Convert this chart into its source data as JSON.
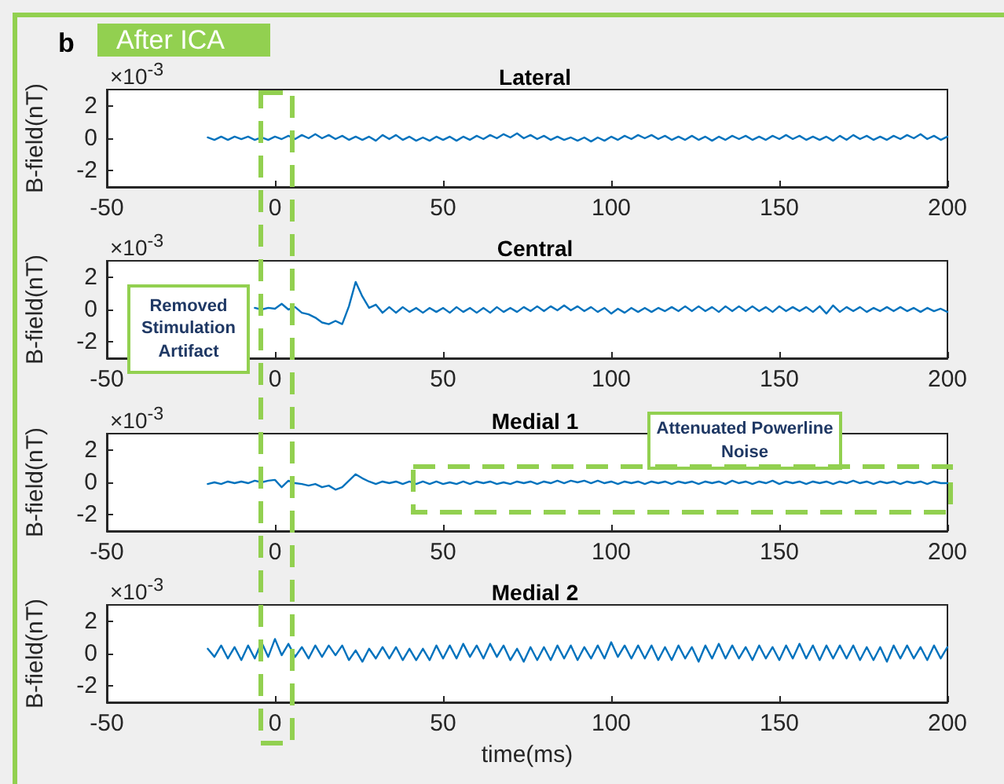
{
  "chart_data": [
    {
      "type": "line",
      "title": "Lateral",
      "ylabel": "B-field(nT)",
      "annotations": [
        "×10$^{-3}$",
        "b",
        "After ICA"
      ],
      "xlim": [
        -50,
        200
      ],
      "xticks": [
        -50,
        0,
        50,
        100,
        150,
        200
      ],
      "ylim": [
        -3,
        3
      ],
      "yticks": [
        -2,
        0,
        2
      ],
      "marker": "none",
      "line_style": "solid",
      "x": [
        -20,
        -18,
        -16,
        -14,
        -12,
        -10,
        -8,
        -6,
        -4,
        -2,
        0,
        2,
        4,
        6,
        8,
        10,
        12,
        14,
        16,
        18,
        20,
        22,
        24,
        26,
        28,
        30,
        32,
        34,
        36,
        38,
        40,
        42,
        44,
        46,
        48,
        50,
        52,
        54,
        56,
        58,
        60,
        62,
        64,
        66,
        68,
        70,
        72,
        74,
        76,
        78,
        80,
        82,
        84,
        86,
        88,
        90,
        92,
        94,
        96,
        98,
        100,
        102,
        104,
        106,
        108,
        110,
        112,
        114,
        116,
        118,
        120,
        122,
        124,
        126,
        128,
        130,
        132,
        134,
        136,
        138,
        140,
        142,
        144,
        146,
        148,
        150,
        152,
        154,
        156,
        158,
        160,
        162,
        164,
        166,
        168,
        170,
        172,
        174,
        176,
        178,
        180,
        182,
        184,
        186,
        188,
        190,
        192,
        194,
        196,
        198,
        200
      ],
      "series": [
        {
          "color": "#0072bd",
          "values": [
            0.05,
            -0.1,
            0.1,
            -0.1,
            0.1,
            -0.05,
            0.1,
            -0.1,
            0.05,
            -0.1,
            0.1,
            -0.05,
            0.15,
            -0.05,
            0.2,
            0,
            0.25,
            0,
            0.2,
            -0.05,
            0.15,
            -0.1,
            0.1,
            -0.1,
            0.1,
            -0.15,
            0.2,
            -0.05,
            0.2,
            -0.1,
            0.1,
            -0.15,
            0.05,
            -0.15,
            0.1,
            -0.1,
            0.1,
            -0.15,
            0.1,
            -0.1,
            0.15,
            -0.05,
            0.2,
            0,
            0.25,
            0.05,
            0.3,
            0,
            0.2,
            -0.05,
            0.15,
            -0.1,
            0.1,
            -0.1,
            0.05,
            -0.15,
            0.05,
            -0.2,
            0.05,
            -0.15,
            0.1,
            -0.1,
            0.15,
            -0.05,
            0.2,
            0,
            0.2,
            -0.05,
            0.15,
            -0.1,
            0.1,
            -0.1,
            0.15,
            -0.1,
            0.1,
            -0.15,
            0.1,
            -0.1,
            0.15,
            -0.05,
            0.15,
            -0.1,
            0.1,
            -0.1,
            0.15,
            -0.05,
            0.2,
            -0.05,
            0.15,
            -0.1,
            0.1,
            -0.1,
            0.1,
            -0.15,
            0.15,
            -0.1,
            0.2,
            -0.05,
            0.15,
            -0.1,
            0.1,
            -0.1,
            0.15,
            -0.05,
            0.2,
            0,
            0.25,
            -0.05,
            0.15,
            -0.1,
            0.1
          ]
        }
      ]
    },
    {
      "type": "line",
      "title": "Central",
      "ylabel": "B-field(nT)",
      "annotations": [
        "×10$^{-3}$",
        "Removed Stimulation Artifact"
      ],
      "xlim": [
        -50,
        200
      ],
      "xticks": [
        -50,
        0,
        50,
        100,
        150,
        200
      ],
      "ylim": [
        -3,
        3
      ],
      "yticks": [
        -2,
        0,
        2
      ],
      "marker": "none",
      "line_style": "solid",
      "x": [
        -6,
        -4,
        -2,
        0,
        2,
        4,
        6,
        8,
        10,
        12,
        14,
        16,
        18,
        20,
        22,
        24,
        26,
        28,
        30,
        32,
        34,
        36,
        38,
        40,
        42,
        44,
        46,
        48,
        50,
        52,
        54,
        56,
        58,
        60,
        62,
        64,
        66,
        68,
        70,
        72,
        74,
        76,
        78,
        80,
        82,
        84,
        86,
        88,
        90,
        92,
        94,
        96,
        98,
        100,
        102,
        104,
        106,
        108,
        110,
        112,
        114,
        116,
        118,
        120,
        122,
        124,
        126,
        128,
        130,
        132,
        134,
        136,
        138,
        140,
        142,
        144,
        146,
        148,
        150,
        152,
        154,
        156,
        158,
        160,
        162,
        164,
        166,
        168,
        170,
        172,
        174,
        176,
        178,
        180,
        182,
        184,
        186,
        188,
        190,
        192,
        194,
        196,
        198,
        200
      ],
      "series": [
        {
          "color": "#0072bd",
          "values": [
            0.1,
            0,
            0.1,
            0.05,
            0.35,
            0,
            0.15,
            -0.2,
            -0.3,
            -0.5,
            -0.8,
            -0.9,
            -0.7,
            -0.9,
            0.2,
            1.7,
            0.8,
            0.1,
            0.3,
            -0.2,
            0.15,
            -0.2,
            0.15,
            -0.15,
            0.1,
            -0.2,
            0.1,
            -0.15,
            0.1,
            -0.2,
            0.15,
            -0.15,
            0.1,
            -0.2,
            0.1,
            -0.2,
            0.15,
            -0.15,
            0.1,
            -0.15,
            0.15,
            -0.1,
            0.2,
            -0.1,
            0.2,
            -0.05,
            0.25,
            -0.05,
            0.2,
            -0.1,
            0.15,
            -0.15,
            0.1,
            -0.25,
            0.05,
            -0.2,
            0.1,
            -0.15,
            0.1,
            -0.15,
            0.1,
            -0.1,
            0.15,
            -0.1,
            0.2,
            -0.1,
            0.2,
            -0.1,
            0.15,
            -0.15,
            0.2,
            -0.1,
            0.2,
            -0.1,
            0.2,
            -0.1,
            0.15,
            -0.15,
            0.2,
            -0.1,
            0.15,
            -0.1,
            0.15,
            -0.15,
            0.2,
            -0.25,
            0.25,
            -0.15,
            0.15,
            -0.1,
            0.15,
            -0.15,
            0.1,
            -0.1,
            0.15,
            -0.1,
            0.15,
            -0.1,
            0.1,
            -0.15,
            0.1,
            -0.1,
            0.05,
            -0.15
          ]
        }
      ]
    },
    {
      "type": "line",
      "title": "Medial 1",
      "ylabel": "B-field(nT)",
      "annotations": [
        "×10$^{-3}$",
        "Attenuated Powerline Noise"
      ],
      "xlim": [
        -50,
        200
      ],
      "xticks": [
        -50,
        0,
        50,
        100,
        150,
        200
      ],
      "ylim": [
        -3,
        3
      ],
      "yticks": [
        -2,
        0,
        2
      ],
      "marker": "none",
      "line_style": "solid",
      "x": [
        -20,
        -18,
        -16,
        -14,
        -12,
        -10,
        -8,
        -6,
        -4,
        -2,
        0,
        2,
        4,
        6,
        8,
        10,
        12,
        14,
        16,
        18,
        20,
        22,
        24,
        26,
        28,
        30,
        32,
        34,
        36,
        38,
        40,
        42,
        44,
        46,
        48,
        50,
        52,
        54,
        56,
        58,
        60,
        62,
        64,
        66,
        68,
        70,
        72,
        74,
        76,
        78,
        80,
        82,
        84,
        86,
        88,
        90,
        92,
        94,
        96,
        98,
        100,
        102,
        104,
        106,
        108,
        110,
        112,
        114,
        116,
        118,
        120,
        122,
        124,
        126,
        128,
        130,
        132,
        134,
        136,
        138,
        140,
        142,
        144,
        146,
        148,
        150,
        152,
        154,
        156,
        158,
        160,
        162,
        164,
        166,
        168,
        170,
        172,
        174,
        176,
        178,
        180,
        182,
        184,
        186,
        188,
        190,
        192,
        194,
        196,
        198,
        200
      ],
      "series": [
        {
          "color": "#0072bd",
          "values": [
            -0.1,
            0,
            -0.1,
            0.05,
            -0.05,
            0.05,
            -0.05,
            0.1,
            0,
            0.1,
            0.15,
            -0.3,
            0.1,
            -0.05,
            -0.1,
            -0.2,
            -0.1,
            -0.3,
            -0.2,
            -0.45,
            -0.3,
            0.1,
            0.5,
            0.25,
            0.05,
            -0.1,
            0.05,
            -0.05,
            0.05,
            -0.1,
            0.05,
            -0.1,
            0.05,
            -0.1,
            0.05,
            -0.1,
            0,
            -0.1,
            0.05,
            -0.1,
            0.05,
            -0.05,
            0.05,
            -0.1,
            0,
            -0.1,
            0.05,
            -0.05,
            0.05,
            -0.1,
            0.05,
            -0.05,
            0.1,
            -0.05,
            0.1,
            0,
            0.1,
            -0.05,
            0.1,
            -0.05,
            0.05,
            -0.1,
            0.05,
            -0.05,
            0.05,
            -0.1,
            0.05,
            -0.05,
            0.05,
            -0.1,
            0.05,
            -0.05,
            0.05,
            -0.1,
            0.05,
            -0.05,
            0.05,
            -0.1,
            0.1,
            -0.05,
            0.05,
            -0.1,
            0.05,
            -0.05,
            0.1,
            -0.1,
            0.05,
            -0.05,
            0.05,
            -0.1,
            0.05,
            -0.05,
            0.05,
            -0.1,
            0.05,
            -0.05,
            0.1,
            -0.05,
            0.05,
            -0.1,
            0.05,
            -0.05,
            0.05,
            -0.1,
            0.05,
            -0.05,
            0.05,
            -0.1,
            0.05,
            -0.05,
            -0.05
          ]
        }
      ]
    },
    {
      "type": "line",
      "title": "Medial 2",
      "xlabel": "time(ms)",
      "ylabel": "B-field(nT)",
      "annotations": [
        "×10$^{-3}$"
      ],
      "xlim": [
        -50,
        200
      ],
      "xticks": [
        -50,
        0,
        50,
        100,
        150,
        200
      ],
      "ylim": [
        -3,
        3
      ],
      "yticks": [
        -2,
        0,
        2
      ],
      "marker": "none",
      "line_style": "solid",
      "x": [
        -20,
        -18,
        -16,
        -14,
        -12,
        -10,
        -8,
        -6,
        -4,
        -2,
        0,
        2,
        4,
        6,
        8,
        10,
        12,
        14,
        16,
        18,
        20,
        22,
        24,
        26,
        28,
        30,
        32,
        34,
        36,
        38,
        40,
        42,
        44,
        46,
        48,
        50,
        52,
        54,
        56,
        58,
        60,
        62,
        64,
        66,
        68,
        70,
        72,
        74,
        76,
        78,
        80,
        82,
        84,
        86,
        88,
        90,
        92,
        94,
        96,
        98,
        100,
        102,
        104,
        106,
        108,
        110,
        112,
        114,
        116,
        118,
        120,
        122,
        124,
        126,
        128,
        130,
        132,
        134,
        136,
        138,
        140,
        142,
        144,
        146,
        148,
        150,
        152,
        154,
        156,
        158,
        160,
        162,
        164,
        166,
        168,
        170,
        172,
        174,
        176,
        178,
        180,
        182,
        184,
        186,
        188,
        190,
        192,
        194,
        196,
        198,
        200
      ],
      "series": [
        {
          "color": "#0072bd",
          "values": [
            0.3,
            -0.2,
            0.5,
            -0.3,
            0.4,
            -0.4,
            0.5,
            -0.3,
            0.7,
            -0.2,
            0.9,
            -0.1,
            0.6,
            -0.2,
            0.4,
            -0.3,
            0.5,
            -0.2,
            0.5,
            -0.1,
            0.5,
            -0.4,
            0.2,
            -0.5,
            0.3,
            -0.3,
            0.4,
            -0.3,
            0.4,
            -0.4,
            0.3,
            -0.4,
            0.3,
            -0.4,
            0.5,
            -0.3,
            0.5,
            -0.3,
            0.6,
            -0.2,
            0.5,
            -0.3,
            0.6,
            -0.2,
            0.5,
            -0.4,
            0.3,
            -0.5,
            0.4,
            -0.4,
            0.4,
            -0.4,
            0.5,
            -0.3,
            0.5,
            -0.4,
            0.4,
            -0.3,
            0.5,
            -0.3,
            0.7,
            -0.2,
            0.5,
            -0.3,
            0.5,
            -0.3,
            0.5,
            -0.4,
            0.4,
            -0.4,
            0.5,
            -0.3,
            0.4,
            -0.5,
            0.5,
            -0.3,
            0.6,
            -0.3,
            0.5,
            -0.3,
            0.4,
            -0.4,
            0.5,
            -0.3,
            0.4,
            -0.4,
            0.5,
            -0.3,
            0.6,
            -0.3,
            0.5,
            -0.4,
            0.5,
            -0.3,
            0.5,
            -0.3,
            0.5,
            -0.4,
            0.4,
            -0.4,
            0.4,
            -0.5,
            0.5,
            -0.3,
            0.5,
            -0.3,
            0.4,
            -0.4,
            0.5,
            -0.3,
            0.4
          ]
        }
      ]
    }
  ]
}
